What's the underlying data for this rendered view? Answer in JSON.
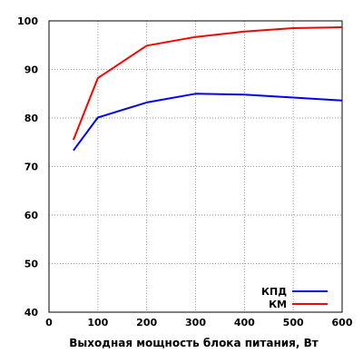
{
  "chart_data": {
    "type": "line",
    "title": "",
    "xlabel": "Выходная мощность блока питания, Вт",
    "ylabel": "",
    "xlim": [
      0,
      600
    ],
    "ylim": [
      40,
      100
    ],
    "grid": true,
    "legend_position": "bottom-right",
    "x_ticks": [
      0,
      100,
      200,
      300,
      400,
      500,
      600
    ],
    "y_ticks": [
      40,
      50,
      60,
      70,
      80,
      90,
      100
    ],
    "series": [
      {
        "name": "КПД",
        "color": "#0000ff",
        "x": [
          50,
          100,
          200,
          300,
          400,
          500,
          600
        ],
        "y": [
          73.3,
          80.1,
          83.2,
          85.0,
          84.8,
          84.2,
          83.6
        ]
      },
      {
        "name": "КМ",
        "color": "#ff0000",
        "x": [
          50,
          100,
          200,
          300,
          400,
          500,
          600
        ],
        "y": [
          75.5,
          88.2,
          94.9,
          96.7,
          97.8,
          98.5,
          98.7
        ]
      }
    ]
  }
}
